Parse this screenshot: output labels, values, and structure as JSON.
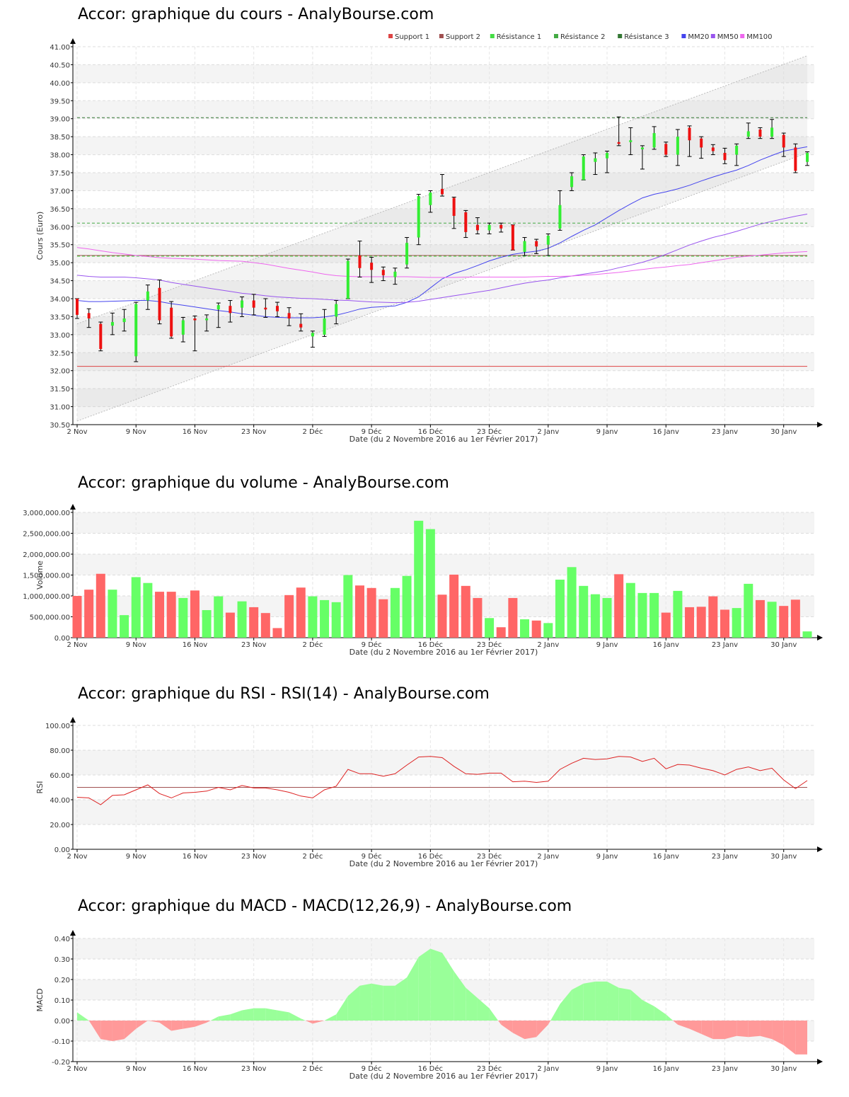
{
  "chart_data": [
    {
      "type": "candlestick",
      "title": "Accor: graphique du cours - AnalyBourse.com",
      "xlabel": "Date (du 2 Novembre 2016 au 1er Février 2017)",
      "ylabel": "Cours (Euro)",
      "ylim": [
        30.5,
        41.0
      ],
      "yticks": [
        "30.50",
        "31.00",
        "31.50",
        "32.00",
        "32.50",
        "33.00",
        "33.50",
        "34.00",
        "34.50",
        "35.00",
        "35.50",
        "36.00",
        "36.50",
        "37.00",
        "37.50",
        "38.00",
        "38.50",
        "39.00",
        "39.50",
        "40.00",
        "40.50",
        "41.00"
      ],
      "xticks": [
        "2 Nov",
        "9 Nov",
        "16 Nov",
        "23 Nov",
        "2 Déc",
        "9 Déc",
        "16 Déc",
        "23 Déc",
        "2 Janv",
        "9 Janv",
        "16 Janv",
        "23 Janv",
        "30 Janv"
      ],
      "xtick_index": [
        0,
        5,
        10,
        15,
        20,
        25,
        30,
        35,
        40,
        45,
        50,
        55,
        60
      ],
      "grid": true,
      "legend_position": "top-right",
      "legend": [
        {
          "name": "Support 1",
          "color": "#dd4444"
        },
        {
          "name": "Support 2",
          "color": "#a05050"
        },
        {
          "name": "Résistance 1",
          "color": "#44dd44"
        },
        {
          "name": "Résistance 2",
          "color": "#44aa44"
        },
        {
          "name": "Résistance 3",
          "color": "#337733"
        },
        {
          "name": "MM20",
          "color": "#4444ee"
        },
        {
          "name": "MM50",
          "color": "#9955ee"
        },
        {
          "name": "MM100",
          "color": "#ee66ee"
        }
      ],
      "levels": {
        "support_1": 32.12,
        "support_2": 35.2,
        "resistance_1": 35.18,
        "resistance_2": 36.1,
        "resistance_3": 39.03
      },
      "candles": [
        {
          "o": 34.0,
          "h": 34.0,
          "l": 33.45,
          "c": 33.55
        },
        {
          "o": 33.6,
          "h": 33.72,
          "l": 33.2,
          "c": 33.45
        },
        {
          "o": 33.3,
          "h": 33.35,
          "l": 32.55,
          "c": 32.6
        },
        {
          "o": 33.25,
          "h": 33.6,
          "l": 33.0,
          "c": 33.35
        },
        {
          "o": 33.35,
          "h": 33.7,
          "l": 33.1,
          "c": 33.45
        },
        {
          "o": 32.4,
          "h": 33.9,
          "l": 32.25,
          "c": 33.85
        },
        {
          "o": 33.95,
          "h": 34.38,
          "l": 33.7,
          "c": 34.2
        },
        {
          "o": 34.3,
          "h": 34.52,
          "l": 33.3,
          "c": 33.4
        },
        {
          "o": 33.75,
          "h": 33.92,
          "l": 32.9,
          "c": 32.95
        },
        {
          "o": 33.0,
          "h": 33.48,
          "l": 32.8,
          "c": 33.4
        },
        {
          "o": 33.45,
          "h": 33.52,
          "l": 32.55,
          "c": 33.4
        },
        {
          "o": 33.4,
          "h": 33.55,
          "l": 33.1,
          "c": 33.45
        },
        {
          "o": 33.7,
          "h": 33.88,
          "l": 33.2,
          "c": 33.82
        },
        {
          "o": 33.8,
          "h": 33.95,
          "l": 33.35,
          "c": 33.6
        },
        {
          "o": 33.75,
          "h": 34.05,
          "l": 33.5,
          "c": 33.95
        },
        {
          "o": 33.95,
          "h": 34.12,
          "l": 33.55,
          "c": 33.75
        },
        {
          "o": 33.75,
          "h": 34.0,
          "l": 33.48,
          "c": 33.7
        },
        {
          "o": 33.8,
          "h": 33.9,
          "l": 33.5,
          "c": 33.65
        },
        {
          "o": 33.6,
          "h": 33.75,
          "l": 33.25,
          "c": 33.45
        },
        {
          "o": 33.3,
          "h": 33.58,
          "l": 33.1,
          "c": 33.2
        },
        {
          "o": 32.95,
          "h": 33.1,
          "l": 32.65,
          "c": 33.05
        },
        {
          "o": 33.0,
          "h": 33.7,
          "l": 32.95,
          "c": 33.45
        },
        {
          "o": 33.5,
          "h": 33.95,
          "l": 33.3,
          "c": 33.85
        },
        {
          "o": 34.0,
          "h": 35.1,
          "l": 34.0,
          "c": 35.05
        },
        {
          "o": 35.2,
          "h": 35.6,
          "l": 34.6,
          "c": 34.85
        },
        {
          "o": 35.0,
          "h": 35.15,
          "l": 34.45,
          "c": 34.8
        },
        {
          "o": 34.8,
          "h": 34.88,
          "l": 34.5,
          "c": 34.65
        },
        {
          "o": 34.6,
          "h": 34.85,
          "l": 34.4,
          "c": 34.75
        },
        {
          "o": 34.95,
          "h": 35.7,
          "l": 34.85,
          "c": 35.55
        },
        {
          "o": 35.7,
          "h": 36.9,
          "l": 35.5,
          "c": 36.85
        },
        {
          "o": 36.6,
          "h": 37.0,
          "l": 36.4,
          "c": 36.95
        },
        {
          "o": 37.05,
          "h": 37.45,
          "l": 36.85,
          "c": 36.9
        },
        {
          "o": 36.8,
          "h": 36.82,
          "l": 35.95,
          "c": 36.3
        },
        {
          "o": 36.4,
          "h": 36.45,
          "l": 35.7,
          "c": 35.85
        },
        {
          "o": 36.05,
          "h": 36.25,
          "l": 35.8,
          "c": 35.9
        },
        {
          "o": 35.9,
          "h": 36.1,
          "l": 35.8,
          "c": 36.05
        },
        {
          "o": 36.05,
          "h": 36.1,
          "l": 35.85,
          "c": 35.95
        },
        {
          "o": 36.05,
          "h": 36.05,
          "l": 35.35,
          "c": 35.35
        },
        {
          "o": 35.3,
          "h": 35.7,
          "l": 35.2,
          "c": 35.6
        },
        {
          "o": 35.6,
          "h": 35.65,
          "l": 35.25,
          "c": 35.45
        },
        {
          "o": 35.5,
          "h": 35.8,
          "l": 35.2,
          "c": 35.75
        },
        {
          "o": 35.95,
          "h": 37.0,
          "l": 35.9,
          "c": 36.6
        },
        {
          "o": 37.1,
          "h": 37.5,
          "l": 37.0,
          "c": 37.4
        },
        {
          "o": 37.3,
          "h": 38.0,
          "l": 37.3,
          "c": 37.95
        },
        {
          "o": 37.8,
          "h": 38.05,
          "l": 37.45,
          "c": 37.9
        },
        {
          "o": 37.9,
          "h": 38.1,
          "l": 37.5,
          "c": 38.05
        },
        {
          "o": 38.35,
          "h": 39.05,
          "l": 38.25,
          "c": 38.3
        },
        {
          "o": 38.35,
          "h": 38.75,
          "l": 38.0,
          "c": 38.4
        },
        {
          "o": 38.15,
          "h": 38.25,
          "l": 37.6,
          "c": 38.2
        },
        {
          "o": 38.2,
          "h": 38.78,
          "l": 38.15,
          "c": 38.6
        },
        {
          "o": 38.3,
          "h": 38.35,
          "l": 37.95,
          "c": 38.0
        },
        {
          "o": 38.0,
          "h": 38.7,
          "l": 37.7,
          "c": 38.5
        },
        {
          "o": 38.75,
          "h": 38.8,
          "l": 37.95,
          "c": 38.4
        },
        {
          "o": 38.45,
          "h": 38.5,
          "l": 37.9,
          "c": 38.2
        },
        {
          "o": 38.2,
          "h": 38.28,
          "l": 38.0,
          "c": 38.1
        },
        {
          "o": 38.05,
          "h": 38.18,
          "l": 37.75,
          "c": 37.85
        },
        {
          "o": 38.0,
          "h": 38.3,
          "l": 37.7,
          "c": 38.25
        },
        {
          "o": 38.5,
          "h": 38.88,
          "l": 38.45,
          "c": 38.65
        },
        {
          "o": 38.7,
          "h": 38.75,
          "l": 38.45,
          "c": 38.5
        },
        {
          "o": 38.5,
          "h": 38.98,
          "l": 38.45,
          "c": 38.75
        },
        {
          "o": 38.55,
          "h": 38.6,
          "l": 37.95,
          "c": 38.2
        },
        {
          "o": 38.2,
          "h": 38.3,
          "l": 37.5,
          "c": 37.55
        },
        {
          "o": 37.8,
          "h": 38.08,
          "l": 37.7,
          "c": 38.05
        }
      ],
      "series": [
        {
          "name": "MM20",
          "values": [
            33.95,
            33.92,
            33.92,
            33.93,
            33.94,
            33.95,
            33.95,
            33.92,
            33.86,
            33.82,
            33.77,
            33.72,
            33.67,
            33.63,
            33.58,
            33.54,
            33.5,
            33.48,
            33.47,
            33.47,
            33.47,
            33.49,
            33.54,
            33.62,
            33.71,
            33.76,
            33.78,
            33.8,
            33.9,
            34.05,
            34.3,
            34.55,
            34.7,
            34.8,
            34.92,
            35.05,
            35.15,
            35.23,
            35.28,
            35.32,
            35.4,
            35.55,
            35.73,
            35.9,
            36.05,
            36.25,
            36.45,
            36.63,
            36.8,
            36.9,
            36.97,
            37.05,
            37.15,
            37.27,
            37.38,
            37.48,
            37.57,
            37.7,
            37.85,
            37.98,
            38.1,
            38.16,
            38.22
          ]
        },
        {
          "name": "MM50",
          "values": [
            34.65,
            34.62,
            34.6,
            34.6,
            34.6,
            34.58,
            34.55,
            34.52,
            34.45,
            34.4,
            34.35,
            34.3,
            34.25,
            34.2,
            34.15,
            34.12,
            34.08,
            34.05,
            34.03,
            34.01,
            34.0,
            33.98,
            33.96,
            33.95,
            33.93,
            33.91,
            33.9,
            33.89,
            33.9,
            33.93,
            33.98,
            34.03,
            34.08,
            34.13,
            34.18,
            34.23,
            34.3,
            34.37,
            34.43,
            34.48,
            34.52,
            34.58,
            34.63,
            34.68,
            34.73,
            34.78,
            34.86,
            34.93,
            35.01,
            35.11,
            35.23,
            35.36,
            35.49,
            35.6,
            35.7,
            35.78,
            35.87,
            35.97,
            36.07,
            36.15,
            36.22,
            36.29,
            36.35
          ]
        },
        {
          "name": "MM100",
          "values": [
            35.42,
            35.38,
            35.33,
            35.28,
            35.24,
            35.2,
            35.17,
            35.14,
            35.12,
            35.11,
            35.1,
            35.08,
            35.06,
            35.05,
            35.04,
            35.0,
            34.96,
            34.9,
            34.84,
            34.79,
            34.74,
            34.68,
            34.64,
            34.62,
            34.61,
            34.61,
            34.61,
            34.61,
            34.61,
            34.6,
            34.59,
            34.59,
            34.59,
            34.6,
            34.6,
            34.6,
            34.6,
            34.6,
            34.6,
            34.61,
            34.62,
            34.62,
            34.63,
            34.65,
            34.67,
            34.7,
            34.73,
            34.77,
            34.81,
            34.85,
            34.88,
            34.92,
            34.95,
            35.0,
            35.05,
            35.1,
            35.15,
            35.18,
            35.21,
            35.24,
            35.27,
            35.29,
            35.31
          ]
        }
      ],
      "trend_channel": {
        "upper": [
          33.3,
          40.75
        ],
        "lower": [
          30.6,
          38.05
        ]
      }
    },
    {
      "type": "bar",
      "title": "Accor: graphique du volume - AnalyBourse.com",
      "xlabel": "Date (du 2 Novembre 2016 au 1er Février 2017)",
      "ylabel": "Volume",
      "ylim": [
        0,
        3000000
      ],
      "yticks": [
        "0.00",
        "500,000.00",
        "1,000,000.00",
        "1,500,000.00",
        "2,000,000.00",
        "2,500,000.00",
        "3,000,000.00"
      ],
      "xticks": [
        "2 Nov",
        "9 Nov",
        "16 Nov",
        "23 Nov",
        "2 Déc",
        "9 Déc",
        "16 Déc",
        "23 Déc",
        "2 Janv",
        "9 Janv",
        "16 Janv",
        "23 Janv",
        "30 Janv"
      ],
      "xtick_index": [
        0,
        5,
        10,
        15,
        20,
        25,
        30,
        35,
        40,
        45,
        50,
        55,
        60
      ],
      "grid": true,
      "values": [
        1000000,
        1150000,
        1530000,
        1150000,
        540000,
        1450000,
        1310000,
        1100000,
        1100000,
        950000,
        1130000,
        660000,
        990000,
        600000,
        870000,
        730000,
        590000,
        230000,
        1020000,
        1200000,
        990000,
        900000,
        850000,
        1500000,
        1250000,
        1190000,
        920000,
        1190000,
        1480000,
        2800000,
        2600000,
        1030000,
        1510000,
        1240000,
        950000,
        470000,
        250000,
        950000,
        440000,
        410000,
        350000,
        1390000,
        1690000,
        1240000,
        1040000,
        950000,
        1520000,
        1310000,
        1070000,
        1070000,
        600000,
        1120000,
        730000,
        740000,
        990000,
        670000,
        710000,
        1290000,
        900000,
        860000,
        760000,
        910000,
        150000
      ]
    },
    {
      "type": "line",
      "title": "Accor: graphique du RSI - RSI(14) - AnalyBourse.com",
      "xlabel": "Date (du 2 Novembre 2016 au 1er Février 2017)",
      "ylabel": "RSI",
      "ylim": [
        0,
        100
      ],
      "yticks": [
        "0.00",
        "20.00",
        "40.00",
        "60.00",
        "80.00",
        "100.00"
      ],
      "xticks": [
        "2 Nov",
        "9 Nov",
        "16 Nov",
        "23 Nov",
        "2 Déc",
        "9 Déc",
        "16 Déc",
        "23 Déc",
        "2 Janv",
        "9 Janv",
        "16 Janv",
        "23 Janv",
        "30 Janv"
      ],
      "xtick_index": [
        0,
        5,
        10,
        15,
        20,
        25,
        30,
        35,
        40,
        45,
        50,
        55,
        60
      ],
      "grid": true,
      "reference_line": 50,
      "series": [
        {
          "name": "RSI",
          "color": "#dd2222",
          "values": [
            42,
            41.5,
            36,
            43.5,
            44,
            48,
            52,
            45,
            41.5,
            45.5,
            46,
            47,
            50,
            48,
            51.5,
            49.5,
            49.5,
            48,
            46,
            43,
            41.5,
            48,
            51,
            64.5,
            61,
            61,
            59,
            61,
            68,
            74.5,
            75,
            74,
            67,
            61,
            60.5,
            61.5,
            61.5,
            54.5,
            55,
            54,
            55,
            64.5,
            69.5,
            73.5,
            72.5,
            73,
            75,
            74.5,
            71,
            73.5,
            65,
            68.5,
            68,
            65.5,
            63.5,
            60,
            64.5,
            66.5,
            63.5,
            65.5,
            56,
            49,
            55.5
          ]
        }
      ]
    },
    {
      "type": "area",
      "title": "Accor: graphique du MACD - MACD(12,26,9) - AnalyBourse.com",
      "xlabel": "Date (du 2 Novembre 2016 au 1er Février 2017)",
      "ylabel": "MACD",
      "ylim": [
        -0.2,
        0.4
      ],
      "yticks": [
        "-0.20",
        "-0.10",
        "0.00",
        "0.10",
        "0.20",
        "0.30",
        "0.40"
      ],
      "xticks": [
        "2 Nov",
        "9 Nov",
        "16 Nov",
        "23 Nov",
        "2 Déc",
        "9 Déc",
        "16 Déc",
        "23 Déc",
        "2 Janv",
        "9 Janv",
        "16 Janv",
        "23 Janv",
        "30 Janv"
      ],
      "xtick_index": [
        0,
        5,
        10,
        15,
        20,
        25,
        30,
        35,
        40,
        45,
        50,
        55,
        60
      ],
      "grid": true,
      "colors": {
        "positive": "#99ff99",
        "negative": "#ff9999"
      },
      "series": [
        {
          "name": "MACD",
          "values": [
            0.04,
            0.0,
            -0.09,
            -0.1,
            -0.09,
            -0.04,
            0.0,
            -0.01,
            -0.05,
            -0.04,
            -0.03,
            -0.01,
            0.02,
            0.03,
            0.05,
            0.06,
            0.06,
            0.05,
            0.04,
            0.01,
            -0.015,
            0.0,
            0.03,
            0.12,
            0.17,
            0.18,
            0.17,
            0.17,
            0.21,
            0.31,
            0.35,
            0.33,
            0.24,
            0.16,
            0.11,
            0.06,
            -0.02,
            -0.06,
            -0.09,
            -0.08,
            -0.02,
            0.08,
            0.15,
            0.18,
            0.19,
            0.19,
            0.16,
            0.15,
            0.1,
            0.07,
            0.03,
            -0.02,
            -0.04,
            -0.065,
            -0.09,
            -0.09,
            -0.075,
            -0.08,
            -0.075,
            -0.09,
            -0.12,
            -0.165,
            -0.165
          ]
        }
      ]
    }
  ]
}
